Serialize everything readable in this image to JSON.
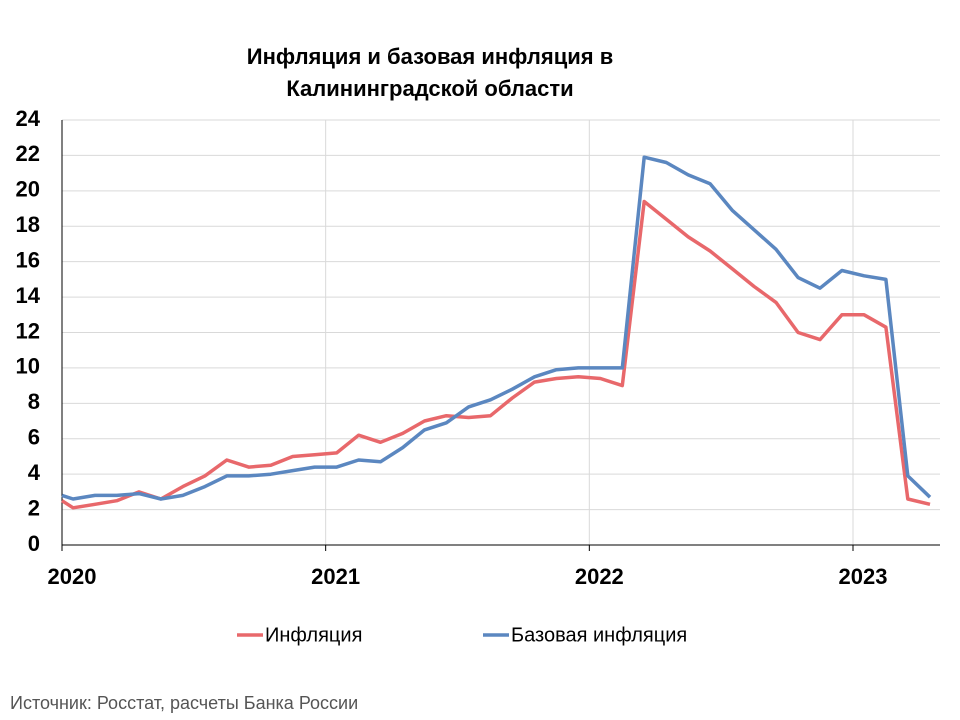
{
  "chart_data": {
    "type": "line",
    "title": [
      "Инфляция и базовая инфляция в",
      "Калининградской области"
    ],
    "source": "Источник: Росстат, расчеты Банка России",
    "x": [
      2020,
      2020.042,
      2020.125,
      2020.208,
      2020.292,
      2020.375,
      2020.458,
      2020.542,
      2020.625,
      2020.708,
      2020.792,
      2020.875,
      2020.958,
      2021.042,
      2021.125,
      2021.208,
      2021.292,
      2021.375,
      2021.458,
      2021.542,
      2021.625,
      2021.708,
      2021.792,
      2021.875,
      2021.958,
      2022.042,
      2022.125,
      2022.208,
      2022.292,
      2022.375,
      2022.458,
      2022.542,
      2022.625,
      2022.708,
      2022.792,
      2022.875,
      2022.958,
      2023.042,
      2023.125,
      2023.208,
      2023.292
    ],
    "series": [
      {
        "name": "Инфляция",
        "color": "#e8686b",
        "values": [
          2.5,
          2.1,
          2.3,
          2.5,
          3.0,
          2.6,
          3.3,
          3.9,
          4.8,
          4.4,
          4.5,
          5.0,
          5.1,
          5.2,
          6.2,
          5.8,
          6.3,
          7.0,
          7.3,
          7.2,
          7.3,
          8.3,
          9.2,
          9.4,
          9.5,
          9.4,
          9.0,
          19.4,
          18.4,
          17.4,
          16.6,
          15.6,
          14.6,
          13.7,
          12.0,
          11.6,
          13.0,
          13.0,
          12.3,
          2.6,
          2.3
        ]
      },
      {
        "name": "Базовая инфляция",
        "color": "#5b87c0",
        "values": [
          2.8,
          2.6,
          2.8,
          2.8,
          2.9,
          2.6,
          2.8,
          3.3,
          3.9,
          3.9,
          4.0,
          4.2,
          4.4,
          4.4,
          4.8,
          4.7,
          5.5,
          6.5,
          6.9,
          7.8,
          8.2,
          8.8,
          9.5,
          9.9,
          10.0,
          10.0,
          10.0,
          21.9,
          21.6,
          20.9,
          20.4,
          18.9,
          17.8,
          16.7,
          15.1,
          14.5,
          15.5,
          15.2,
          15.0,
          3.9,
          2.7
        ]
      }
    ],
    "xlim": [
      2020,
      2023.33
    ],
    "xticks": [
      2020,
      2021,
      2022,
      2023
    ],
    "ylim": [
      0,
      24
    ],
    "yticks": [
      0,
      2,
      4,
      6,
      8,
      10,
      12,
      14,
      16,
      18,
      20,
      22,
      24
    ],
    "grid": true,
    "legend": "bottom"
  }
}
